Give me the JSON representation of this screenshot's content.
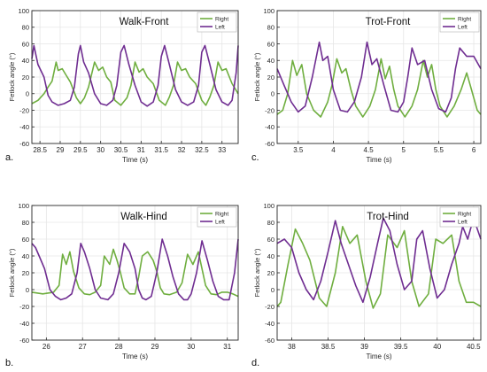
{
  "figure": {
    "colors": {
      "right": "#6fae3f",
      "left": "#6f2d91",
      "axis": "#262626",
      "grid": "#e6e6e6"
    }
  },
  "chart_data": [
    {
      "panel_label": "a.",
      "type": "line",
      "title": "Walk-Front",
      "xlabel": "Time (s)",
      "ylabel": "Fetlock angle (°)",
      "xlim": [
        28.3,
        33.4
      ],
      "ylim": [
        -60,
        100
      ],
      "xticks": [
        28.5,
        29,
        29.5,
        30,
        30.5,
        31,
        31.5,
        32,
        32.5,
        33
      ],
      "xtick_labels": [
        "28.5",
        "29",
        "29.5",
        "30",
        "30.5",
        "31",
        "31.5",
        "32",
        "32.5",
        "33"
      ],
      "yticks": [
        -60,
        -40,
        -20,
        0,
        20,
        40,
        60,
        80,
        100
      ],
      "ytick_labels": [
        "-60",
        "-40",
        "-20",
        "0",
        "20",
        "40",
        "60",
        "80",
        "100"
      ],
      "grid": true,
      "legend": "top-right",
      "series": [
        {
          "name": "Right",
          "color": "#6fae3f",
          "x": [
            28.3,
            28.45,
            28.6,
            28.7,
            28.8,
            28.9,
            28.95,
            29.05,
            29.15,
            29.25,
            29.4,
            29.5,
            29.6,
            29.7,
            29.85,
            29.95,
            30.05,
            30.15,
            30.25,
            30.35,
            30.5,
            30.65,
            30.75,
            30.85,
            30.95,
            31.05,
            31.15,
            31.3,
            31.45,
            31.6,
            31.7,
            31.8,
            31.9,
            32.0,
            32.1,
            32.2,
            32.35,
            32.5,
            32.6,
            32.7,
            32.8,
            32.9,
            33.0,
            33.1,
            33.25,
            33.4
          ],
          "y": [
            -12,
            -8,
            0,
            8,
            15,
            38,
            28,
            30,
            22,
            14,
            -5,
            -12,
            -5,
            8,
            38,
            28,
            32,
            20,
            14,
            -8,
            -14,
            -5,
            10,
            38,
            26,
            30,
            20,
            12,
            -8,
            -14,
            -4,
            10,
            38,
            28,
            30,
            20,
            12,
            -8,
            -14,
            -4,
            10,
            38,
            28,
            30,
            12,
            0
          ]
        },
        {
          "name": "Left",
          "color": "#6f2d91",
          "x": [
            28.3,
            28.35,
            28.45,
            28.6,
            28.7,
            28.8,
            28.95,
            29.1,
            29.25,
            29.35,
            29.45,
            29.5,
            29.58,
            29.7,
            29.85,
            30.0,
            30.15,
            30.3,
            30.4,
            30.5,
            30.58,
            30.7,
            30.85,
            31.0,
            31.15,
            31.3,
            31.42,
            31.5,
            31.58,
            31.7,
            31.85,
            32.0,
            32.15,
            32.3,
            32.42,
            32.5,
            32.58,
            32.7,
            32.85,
            33.0,
            33.15,
            33.25,
            33.35,
            33.4
          ],
          "y": [
            42,
            58,
            35,
            20,
            -2,
            -10,
            -14,
            -12,
            -8,
            8,
            48,
            58,
            38,
            25,
            0,
            -12,
            -14,
            -8,
            10,
            50,
            58,
            35,
            10,
            -10,
            -15,
            -10,
            10,
            45,
            58,
            35,
            5,
            -10,
            -14,
            -10,
            10,
            50,
            58,
            35,
            5,
            -10,
            -14,
            -8,
            25,
            58
          ]
        }
      ]
    },
    {
      "panel_label": "c.",
      "type": "line",
      "title": "Trot-Front",
      "xlabel": "Time (s)",
      "ylabel": "Fetlock angle (°)",
      "xlim": [
        3.2,
        6.1
      ],
      "ylim": [
        -60,
        100
      ],
      "xticks": [
        3.5,
        4,
        4.5,
        5,
        5.5,
        6
      ],
      "xtick_labels": [
        "3.5",
        "4",
        "4.5",
        "5",
        "5.5",
        "6"
      ],
      "yticks": [
        -60,
        -40,
        -20,
        0,
        20,
        40,
        60,
        80,
        100
      ],
      "ytick_labels": [
        "-60",
        "-40",
        "-20",
        "0",
        "20",
        "40",
        "60",
        "80",
        "100"
      ],
      "grid": true,
      "legend": "top-right",
      "series": [
        {
          "name": "Right",
          "color": "#6fae3f",
          "x": [
            3.2,
            3.28,
            3.35,
            3.42,
            3.48,
            3.55,
            3.62,
            3.72,
            3.82,
            3.92,
            3.98,
            4.05,
            4.12,
            4.18,
            4.25,
            4.32,
            4.42,
            4.52,
            4.6,
            4.68,
            4.74,
            4.8,
            4.86,
            4.92,
            5.02,
            5.12,
            5.2,
            5.28,
            5.34,
            5.4,
            5.46,
            5.52,
            5.62,
            5.72,
            5.82,
            5.9,
            5.95,
            6.05,
            6.1
          ],
          "y": [
            -25,
            -20,
            0,
            40,
            22,
            35,
            0,
            -20,
            -28,
            -10,
            10,
            42,
            25,
            30,
            5,
            -15,
            -28,
            -15,
            5,
            42,
            18,
            33,
            5,
            -15,
            -28,
            -15,
            5,
            40,
            20,
            35,
            5,
            -15,
            -28,
            -15,
            5,
            25,
            10,
            -20,
            -25
          ]
        },
        {
          "name": "Left",
          "color": "#6f2d91",
          "x": [
            3.2,
            3.3,
            3.4,
            3.5,
            3.6,
            3.7,
            3.8,
            3.85,
            3.92,
            4.0,
            4.1,
            4.2,
            4.3,
            4.4,
            4.48,
            4.55,
            4.62,
            4.72,
            4.82,
            4.92,
            5.0,
            5.06,
            5.12,
            5.2,
            5.3,
            5.4,
            5.5,
            5.6,
            5.68,
            5.74,
            5.8,
            5.9,
            6.0,
            6.1
          ],
          "y": [
            30,
            10,
            -10,
            -22,
            -15,
            20,
            62,
            40,
            45,
            5,
            -20,
            -22,
            -10,
            20,
            62,
            35,
            42,
            10,
            -20,
            -22,
            -10,
            20,
            55,
            35,
            40,
            5,
            -18,
            -22,
            -5,
            30,
            55,
            45,
            45,
            30
          ]
        }
      ]
    },
    {
      "panel_label": "b.",
      "type": "line",
      "title": "Walk-Hind",
      "xlabel": "Time (s)",
      "ylabel": "Fetlock angle (°)",
      "xlim": [
        25.6,
        31.3
      ],
      "ylim": [
        -60,
        100
      ],
      "xticks": [
        26,
        27,
        28,
        29,
        30,
        31
      ],
      "xtick_labels": [
        "26",
        "27",
        "28",
        "29",
        "30",
        "31"
      ],
      "yticks": [
        -60,
        -40,
        -20,
        0,
        20,
        40,
        60,
        80,
        100
      ],
      "ytick_labels": [
        "-60",
        "-40",
        "-20",
        "0",
        "20",
        "40",
        "60",
        "80",
        "100"
      ],
      "grid": true,
      "legend": "top-right",
      "series": [
        {
          "name": "Right",
          "color": "#6fae3f",
          "x": [
            25.6,
            25.9,
            26.2,
            26.35,
            26.45,
            26.55,
            26.65,
            26.75,
            26.9,
            27.05,
            27.2,
            27.35,
            27.5,
            27.6,
            27.75,
            27.85,
            27.95,
            28.05,
            28.15,
            28.3,
            28.45,
            28.55,
            28.65,
            28.8,
            28.95,
            29.05,
            29.15,
            29.25,
            29.4,
            29.6,
            29.75,
            29.9,
            30.05,
            30.2,
            30.3,
            30.4,
            30.55,
            30.7,
            30.85,
            31.0,
            31.15,
            31.3
          ],
          "y": [
            -3,
            -5,
            -3,
            5,
            42,
            30,
            45,
            22,
            2,
            -5,
            -6,
            -3,
            5,
            40,
            30,
            48,
            35,
            20,
            2,
            -5,
            -5,
            15,
            40,
            45,
            35,
            22,
            2,
            -5,
            -6,
            -3,
            8,
            42,
            30,
            45,
            25,
            5,
            -5,
            -6,
            -3,
            -3,
            -5,
            -8
          ]
        },
        {
          "name": "Left",
          "color": "#6f2d91",
          "x": [
            25.6,
            25.7,
            25.8,
            25.95,
            26.1,
            26.25,
            26.4,
            26.55,
            26.7,
            26.85,
            26.95,
            27.05,
            27.2,
            27.35,
            27.5,
            27.7,
            27.85,
            28.0,
            28.15,
            28.3,
            28.45,
            28.55,
            28.65,
            28.75,
            28.9,
            29.05,
            29.2,
            29.35,
            29.5,
            29.65,
            29.8,
            29.9,
            30.0,
            30.15,
            30.3,
            30.45,
            30.6,
            30.75,
            30.9,
            31.05,
            31.2,
            31.3
          ],
          "y": [
            55,
            50,
            40,
            25,
            0,
            -8,
            -12,
            -10,
            -5,
            20,
            55,
            45,
            25,
            0,
            -10,
            -12,
            -5,
            20,
            55,
            45,
            25,
            0,
            -10,
            -12,
            -8,
            20,
            60,
            40,
            15,
            -5,
            -12,
            -12,
            -5,
            20,
            58,
            35,
            10,
            -8,
            -12,
            -12,
            20,
            60
          ]
        }
      ]
    },
    {
      "panel_label": "d.",
      "type": "line",
      "title": "Trot-Hind",
      "xlabel": "Time (s)",
      "ylabel": "Fetlock angle (°)",
      "xlim": [
        37.8,
        40.6
      ],
      "ylim": [
        -60,
        100
      ],
      "xticks": [
        38,
        38.5,
        39,
        39.5,
        40,
        40.5
      ],
      "xtick_labels": [
        "38",
        "38.5",
        "39",
        "39.5",
        "40",
        "40.5"
      ],
      "yticks": [
        -60,
        -40,
        -20,
        0,
        20,
        40,
        60,
        80,
        100
      ],
      "ytick_labels": [
        "-60",
        "-40",
        "-20",
        "0",
        "20",
        "40",
        "60",
        "80",
        "100"
      ],
      "grid": true,
      "legend": "top-right",
      "series": [
        {
          "name": "Right",
          "color": "#6fae3f",
          "x": [
            37.8,
            37.85,
            37.95,
            38.05,
            38.15,
            38.25,
            38.38,
            38.48,
            38.6,
            38.7,
            38.8,
            38.9,
            39.02,
            39.12,
            39.22,
            39.32,
            39.45,
            39.55,
            39.65,
            39.75,
            39.88,
            39.98,
            40.08,
            40.2,
            40.3,
            40.4,
            40.5,
            40.6
          ],
          "y": [
            -20,
            -15,
            30,
            72,
            55,
            35,
            -10,
            -20,
            20,
            75,
            55,
            65,
            10,
            -22,
            -5,
            65,
            50,
            70,
            10,
            -20,
            -5,
            60,
            55,
            65,
            10,
            -15,
            -15,
            -20
          ]
        },
        {
          "name": "Left",
          "color": "#6f2d91",
          "x": [
            37.8,
            37.9,
            38.0,
            38.1,
            38.2,
            38.3,
            38.4,
            38.5,
            38.6,
            38.68,
            38.78,
            38.88,
            38.98,
            39.08,
            39.18,
            39.26,
            39.35,
            39.45,
            39.55,
            39.65,
            39.72,
            39.8,
            39.9,
            40.0,
            40.1,
            40.2,
            40.3,
            40.35,
            40.42,
            40.5,
            40.6
          ],
          "y": [
            55,
            60,
            50,
            20,
            0,
            -12,
            10,
            45,
            82,
            55,
            30,
            5,
            -15,
            15,
            55,
            85,
            70,
            30,
            0,
            10,
            60,
            70,
            25,
            -10,
            0,
            30,
            55,
            75,
            60,
            85,
            60
          ]
        }
      ]
    }
  ]
}
